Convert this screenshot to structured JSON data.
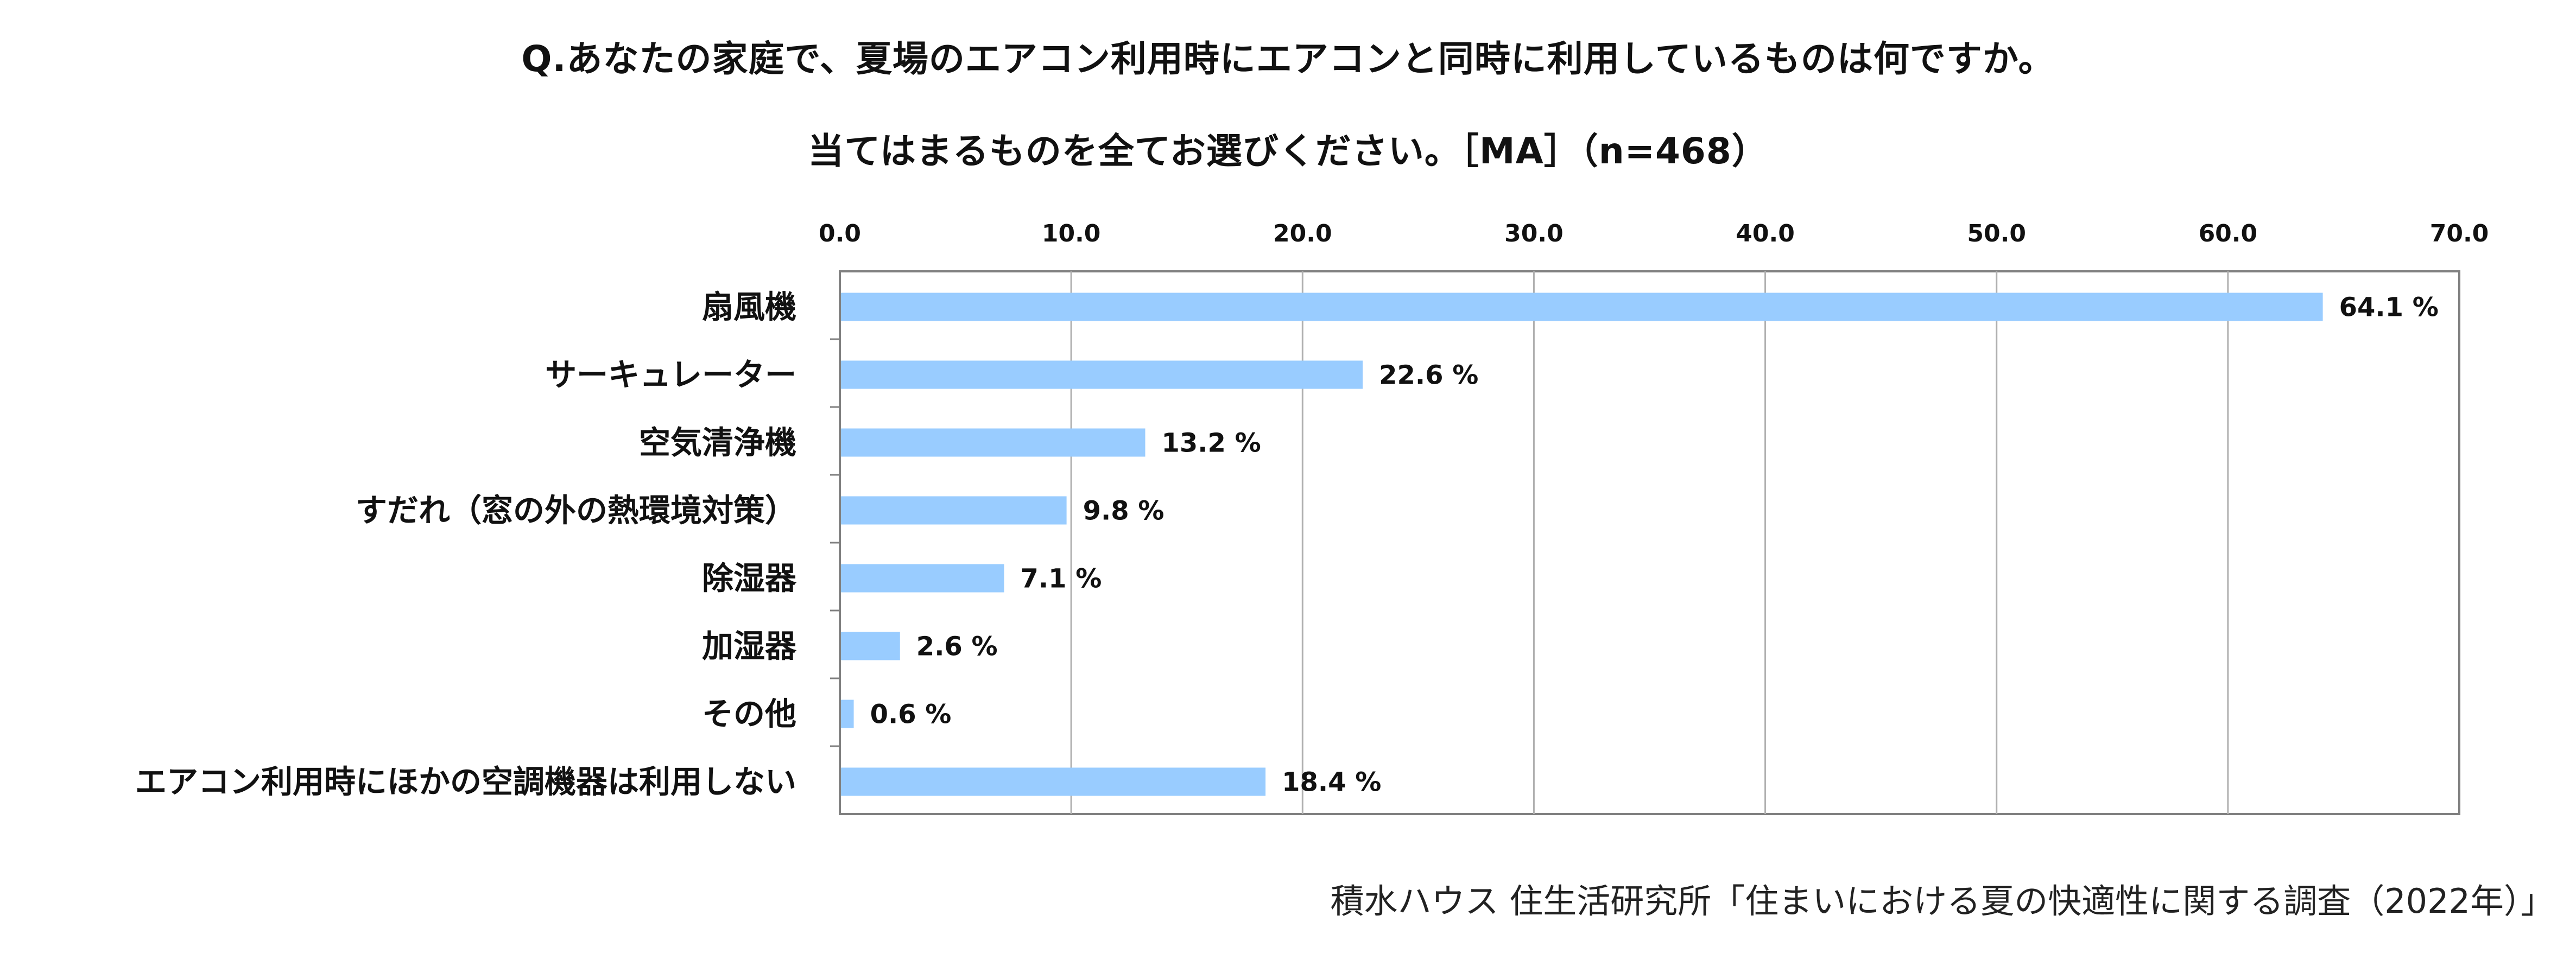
{
  "title_line1": "Q.あなたの家庭で、夏場のエアコン利用時にエアコンと同時に利用しているものは何ですか。",
  "title_line2": "当てはまるものを全てお選びください。［MA］（n=468）",
  "source": "積水ハウス 住生活研究所「住まいにおける夏の快適性に関する調査（2022年）」",
  "colors": {
    "bar": "#99CCFF",
    "grid": "#b0b0b0",
    "axis": "#808080"
  },
  "chart_data": {
    "type": "bar",
    "orientation": "horizontal",
    "categories": [
      "扇風機",
      "サーキュレーター",
      "空気清浄機",
      "すだれ（窓の外の熱環境対策）",
      "除湿器",
      "加湿器",
      "その他",
      "エアコン利用時にほかの空調機器は利用しない"
    ],
    "values": [
      64.1,
      22.6,
      13.2,
      9.8,
      7.1,
      2.6,
      0.6,
      18.4
    ],
    "value_suffix": " %",
    "xlim": [
      0,
      70
    ],
    "xticks": [
      "0.0",
      "10.0",
      "20.0",
      "30.0",
      "40.0",
      "50.0",
      "60.0",
      "70.0"
    ],
    "xaxis_position": "top",
    "grid": true,
    "legend": "none"
  }
}
